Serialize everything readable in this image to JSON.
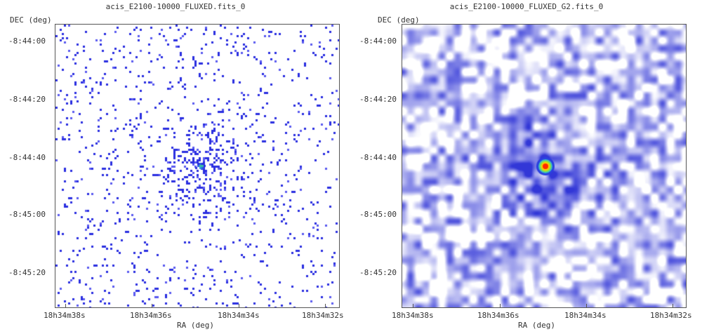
{
  "panels": [
    {
      "title": "acis_E2100-10000_FLUXED.fits_0",
      "ylabel": "DEC (deg)",
      "xlabel": "RA (deg)",
      "yticks": [
        "-8:44:00",
        "-8:44:20",
        "-8:44:40",
        "-8:45:00",
        "-8:45:20"
      ],
      "xticks": [
        "18h34m38s",
        "18h34m36s",
        "18h34m34s",
        "18h34m32s"
      ],
      "style": "raw-counts",
      "colors": {
        "low": "#2a2ee0",
        "mid": "#3cc0a0",
        "high": "#ff2a00"
      }
    },
    {
      "title": "acis_E2100-10000_FLUXED_G2.fits_0",
      "ylabel": "DEC (deg)",
      "xlabel": "RA (deg)",
      "yticks": [
        "-8:44:00",
        "-8:44:20",
        "-8:44:40",
        "-8:45:00",
        "-8:45:20"
      ],
      "xticks": [
        "18h34m38s",
        "18h34m36s",
        "18h34m34s",
        "18h34m32s"
      ],
      "style": "smoothed",
      "colors": {
        "low": "#2a2ee0",
        "mid": "#3cc0a0",
        "high": "#ff2a00"
      }
    }
  ]
}
